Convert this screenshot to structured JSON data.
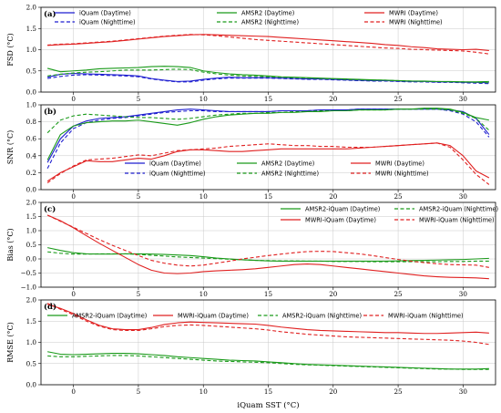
{
  "chart_data": [
    {
      "type": "line",
      "panel": "(a)",
      "ylabel": "FSD (°C)",
      "ylim": [
        0,
        2.0
      ],
      "yticks": [
        "0.0",
        "0.5",
        "1.0",
        "1.5",
        "2.0"
      ],
      "grid": true,
      "legend": "top (3 columns, 2 rows)",
      "x": [
        -2,
        -1,
        0,
        1,
        2,
        3,
        4,
        5,
        6,
        7,
        8,
        9,
        10,
        11,
        12,
        13,
        14,
        15,
        16,
        17,
        18,
        19,
        20,
        21,
        22,
        23,
        24,
        25,
        26,
        27,
        28,
        29,
        30,
        31,
        32
      ],
      "series": [
        {
          "name": "iQuam (Daytime)",
          "color": "#1f1fd0",
          "dash": "solid",
          "values": [
            0.35,
            0.42,
            0.44,
            0.43,
            0.42,
            0.41,
            0.4,
            0.38,
            0.32,
            0.28,
            0.25,
            0.26,
            0.3,
            0.33,
            0.35,
            0.34,
            0.34,
            0.34,
            0.33,
            0.32,
            0.31,
            0.31,
            0.3,
            0.29,
            0.28,
            0.27,
            0.27,
            0.26,
            0.25,
            0.25,
            0.24,
            0.24,
            0.23,
            0.23,
            0.22
          ]
        },
        {
          "name": "iQuam (Nighttime)",
          "color": "#1f1fd0",
          "dash": "dashed",
          "values": [
            0.32,
            0.37,
            0.4,
            0.41,
            0.4,
            0.39,
            0.38,
            0.36,
            0.31,
            0.27,
            0.24,
            0.24,
            0.28,
            0.31,
            0.33,
            0.33,
            0.33,
            0.33,
            0.32,
            0.31,
            0.3,
            0.3,
            0.29,
            0.28,
            0.27,
            0.26,
            0.26,
            0.25,
            0.24,
            0.24,
            0.23,
            0.23,
            0.22,
            0.21,
            0.2
          ]
        },
        {
          "name": "AMSR2 (Daytime)",
          "color": "#1a9a1a",
          "dash": "solid",
          "values": [
            0.56,
            0.48,
            0.5,
            0.52,
            0.55,
            0.56,
            0.57,
            0.58,
            0.6,
            0.61,
            0.6,
            0.58,
            0.5,
            0.46,
            0.43,
            0.41,
            0.4,
            0.38,
            0.36,
            0.35,
            0.34,
            0.33,
            0.32,
            0.31,
            0.3,
            0.29,
            0.28,
            0.27,
            0.26,
            0.26,
            0.25,
            0.25,
            0.24,
            0.24,
            0.25
          ]
        },
        {
          "name": "AMSR2 (Nighttime)",
          "color": "#1a9a1a",
          "dash": "dashed",
          "values": [
            0.38,
            0.42,
            0.45,
            0.47,
            0.48,
            0.5,
            0.52,
            0.52,
            0.52,
            0.53,
            0.54,
            0.53,
            0.47,
            0.43,
            0.4,
            0.38,
            0.37,
            0.36,
            0.35,
            0.34,
            0.33,
            0.32,
            0.31,
            0.3,
            0.29,
            0.28,
            0.28,
            0.27,
            0.26,
            0.25,
            0.25,
            0.24,
            0.24,
            0.23,
            0.22
          ]
        },
        {
          "name": "MWRI (Daytime)",
          "color": "#e02020",
          "dash": "solid",
          "values": [
            1.1,
            1.12,
            1.13,
            1.15,
            1.17,
            1.19,
            1.22,
            1.25,
            1.28,
            1.31,
            1.33,
            1.35,
            1.36,
            1.35,
            1.34,
            1.33,
            1.32,
            1.31,
            1.29,
            1.27,
            1.25,
            1.23,
            1.21,
            1.19,
            1.17,
            1.15,
            1.12,
            1.1,
            1.07,
            1.05,
            1.02,
            1.01,
            1.0,
            1.01,
            0.98
          ]
        },
        {
          "name": "MWRI (Nighttime)",
          "color": "#e02020",
          "dash": "dashed",
          "values": [
            1.11,
            1.13,
            1.14,
            1.16,
            1.18,
            1.2,
            1.23,
            1.26,
            1.29,
            1.32,
            1.34,
            1.36,
            1.35,
            1.33,
            1.3,
            1.27,
            1.24,
            1.22,
            1.2,
            1.18,
            1.16,
            1.14,
            1.12,
            1.1,
            1.08,
            1.06,
            1.04,
            1.03,
            1.01,
            1.0,
            0.99,
            0.98,
            0.97,
            0.94,
            0.9
          ]
        }
      ]
    },
    {
      "type": "line",
      "panel": "(b)",
      "ylabel": "SNR (°C)",
      "ylim": [
        0,
        1.0
      ],
      "yticks": [
        "0.0",
        "0.2",
        "0.4",
        "0.6",
        "0.8",
        "1.0"
      ],
      "grid": true,
      "legend": "bottom (3 columns, 2 rows)",
      "x": [
        -2,
        -1,
        0,
        1,
        2,
        3,
        4,
        5,
        6,
        7,
        8,
        9,
        10,
        11,
        12,
        13,
        14,
        15,
        16,
        17,
        18,
        19,
        20,
        21,
        22,
        23,
        24,
        25,
        26,
        27,
        28,
        29,
        30,
        31,
        32
      ],
      "series": [
        {
          "name": "iQuam (Daytime)",
          "color": "#1f1fd0",
          "dash": "solid",
          "values": [
            0.32,
            0.6,
            0.75,
            0.81,
            0.84,
            0.85,
            0.86,
            0.88,
            0.9,
            0.92,
            0.94,
            0.95,
            0.94,
            0.93,
            0.92,
            0.92,
            0.92,
            0.92,
            0.93,
            0.93,
            0.93,
            0.94,
            0.94,
            0.94,
            0.95,
            0.95,
            0.95,
            0.95,
            0.95,
            0.95,
            0.95,
            0.94,
            0.92,
            0.84,
            0.65
          ]
        },
        {
          "name": "iQuam (Nighttime)",
          "color": "#1f1fd0",
          "dash": "dashed",
          "values": [
            0.25,
            0.55,
            0.72,
            0.79,
            0.82,
            0.84,
            0.85,
            0.87,
            0.89,
            0.91,
            0.92,
            0.93,
            0.93,
            0.92,
            0.92,
            0.92,
            0.92,
            0.92,
            0.93,
            0.93,
            0.93,
            0.94,
            0.94,
            0.94,
            0.95,
            0.95,
            0.95,
            0.95,
            0.95,
            0.95,
            0.95,
            0.93,
            0.89,
            0.8,
            0.62
          ]
        },
        {
          "name": "AMSR2 (Daytime)",
          "color": "#1a9a1a",
          "dash": "solid",
          "values": [
            0.35,
            0.65,
            0.75,
            0.79,
            0.8,
            0.81,
            0.81,
            0.82,
            0.8,
            0.78,
            0.76,
            0.79,
            0.83,
            0.86,
            0.88,
            0.89,
            0.9,
            0.9,
            0.91,
            0.91,
            0.92,
            0.92,
            0.93,
            0.93,
            0.94,
            0.94,
            0.94,
            0.95,
            0.95,
            0.96,
            0.96,
            0.95,
            0.91,
            0.85,
            0.82
          ]
        },
        {
          "name": "AMSR2 (Nighttime)",
          "color": "#1a9a1a",
          "dash": "dashed",
          "values": [
            0.67,
            0.82,
            0.87,
            0.89,
            0.88,
            0.87,
            0.86,
            0.85,
            0.85,
            0.84,
            0.83,
            0.84,
            0.86,
            0.88,
            0.89,
            0.9,
            0.9,
            0.91,
            0.91,
            0.92,
            0.92,
            0.93,
            0.93,
            0.93,
            0.94,
            0.94,
            0.94,
            0.95,
            0.95,
            0.95,
            0.95,
            0.94,
            0.9,
            0.84,
            0.7
          ]
        },
        {
          "name": "MWRI (Daytime)",
          "color": "#e02020",
          "dash": "solid",
          "values": [
            0.1,
            0.2,
            0.27,
            0.34,
            0.33,
            0.33,
            0.35,
            0.37,
            0.36,
            0.4,
            0.45,
            0.47,
            0.47,
            0.46,
            0.45,
            0.45,
            0.46,
            0.47,
            0.48,
            0.48,
            0.48,
            0.48,
            0.48,
            0.48,
            0.49,
            0.5,
            0.51,
            0.52,
            0.53,
            0.54,
            0.55,
            0.52,
            0.4,
            0.22,
            0.14
          ]
        },
        {
          "name": "MWRI (Nighttime)",
          "color": "#e02020",
          "dash": "dashed",
          "values": [
            0.08,
            0.19,
            0.28,
            0.35,
            0.36,
            0.37,
            0.39,
            0.41,
            0.4,
            0.43,
            0.46,
            0.47,
            0.48,
            0.49,
            0.51,
            0.52,
            0.53,
            0.54,
            0.53,
            0.52,
            0.52,
            0.51,
            0.51,
            0.5,
            0.5,
            0.5,
            0.51,
            0.52,
            0.53,
            0.54,
            0.55,
            0.5,
            0.35,
            0.18,
            0.06
          ]
        }
      ]
    },
    {
      "type": "line",
      "panel": "(c)",
      "ylabel": "Bias (°C)",
      "ylim": [
        -1.0,
        2.0
      ],
      "yticks": [
        "−1.0",
        "−0.5",
        "0.0",
        "0.5",
        "1.0",
        "1.5",
        "2.0"
      ],
      "grid": true,
      "legend": "top-right (2 columns, 2 rows)",
      "x": [
        -2,
        -1,
        0,
        1,
        2,
        3,
        4,
        5,
        6,
        7,
        8,
        9,
        10,
        11,
        12,
        13,
        14,
        15,
        16,
        17,
        18,
        19,
        20,
        21,
        22,
        23,
        24,
        25,
        26,
        27,
        28,
        29,
        30,
        31,
        32
      ],
      "series": [
        {
          "name": "AMSR2-iQuam (Daytime)",
          "color": "#1a9a1a",
          "dash": "solid",
          "values": [
            0.4,
            0.3,
            0.22,
            0.18,
            0.17,
            0.17,
            0.18,
            0.18,
            0.17,
            0.16,
            0.14,
            0.12,
            0.08,
            0.03,
            0.0,
            -0.03,
            -0.05,
            -0.07,
            -0.08,
            -0.08,
            -0.08,
            -0.08,
            -0.08,
            -0.08,
            -0.08,
            -0.08,
            -0.08,
            -0.07,
            -0.06,
            -0.05,
            -0.04,
            -0.03,
            -0.02,
            0.0,
            0.02
          ]
        },
        {
          "name": "AMSR2-iQuam (Nighttime)",
          "color": "#1a9a1a",
          "dash": "dashed",
          "values": [
            0.25,
            0.2,
            0.17,
            0.17,
            0.18,
            0.18,
            0.18,
            0.16,
            0.13,
            0.1,
            0.07,
            0.05,
            0.03,
            0.01,
            -0.01,
            -0.03,
            -0.05,
            -0.06,
            -0.07,
            -0.07,
            -0.08,
            -0.08,
            -0.09,
            -0.09,
            -0.09,
            -0.1,
            -0.1,
            -0.1,
            -0.1,
            -0.1,
            -0.1,
            -0.09,
            -0.09,
            -0.08,
            -0.08
          ]
        },
        {
          "name": "MWRI-iQuam (Daytime)",
          "color": "#e02020",
          "dash": "solid",
          "values": [
            1.55,
            1.35,
            1.1,
            0.82,
            0.55,
            0.3,
            0.05,
            -0.2,
            -0.4,
            -0.5,
            -0.52,
            -0.5,
            -0.45,
            -0.42,
            -0.4,
            -0.38,
            -0.35,
            -0.3,
            -0.25,
            -0.2,
            -0.18,
            -0.2,
            -0.25,
            -0.3,
            -0.35,
            -0.4,
            -0.45,
            -0.5,
            -0.55,
            -0.6,
            -0.63,
            -0.65,
            -0.66,
            -0.67,
            -0.7
          ]
        },
        {
          "name": "MWRI-iQuam (Nighttime)",
          "color": "#e02020",
          "dash": "dashed",
          "values": [
            1.55,
            1.33,
            1.12,
            0.9,
            0.68,
            0.48,
            0.3,
            0.12,
            -0.05,
            -0.15,
            -0.22,
            -0.25,
            -0.22,
            -0.15,
            -0.08,
            0.0,
            0.06,
            0.12,
            0.17,
            0.22,
            0.26,
            0.27,
            0.26,
            0.22,
            0.18,
            0.12,
            0.05,
            -0.02,
            -0.08,
            -0.13,
            -0.17,
            -0.2,
            -0.21,
            -0.22,
            -0.3
          ]
        }
      ]
    },
    {
      "type": "line",
      "panel": "(d)",
      "ylabel": "RMSE (°C)",
      "xlabel": "iQuam SST (°C)",
      "ylim": [
        0,
        2.0
      ],
      "yticks": [
        "0.0",
        "0.5",
        "1.0",
        "1.5",
        "2.0"
      ],
      "xticks": [
        "0",
        "5",
        "10",
        "15",
        "20",
        "25",
        "30"
      ],
      "xlim": [
        -2.5,
        32.5
      ],
      "grid": true,
      "legend": "top (4 columns, 1 row)",
      "x": [
        -2,
        -1,
        0,
        1,
        2,
        3,
        4,
        5,
        6,
        7,
        8,
        9,
        10,
        11,
        12,
        13,
        14,
        15,
        16,
        17,
        18,
        19,
        20,
        21,
        22,
        23,
        24,
        25,
        26,
        27,
        28,
        29,
        30,
        31,
        32
      ],
      "series": [
        {
          "name": "AMSR2-iQuam (Daytime)",
          "color": "#1a9a1a",
          "dash": "solid",
          "values": [
            0.78,
            0.72,
            0.71,
            0.72,
            0.73,
            0.74,
            0.74,
            0.73,
            0.71,
            0.69,
            0.66,
            0.64,
            0.62,
            0.6,
            0.58,
            0.57,
            0.56,
            0.54,
            0.52,
            0.5,
            0.48,
            0.47,
            0.46,
            0.45,
            0.44,
            0.43,
            0.42,
            0.41,
            0.4,
            0.39,
            0.38,
            0.37,
            0.37,
            0.37,
            0.38
          ]
        },
        {
          "name": "MWRI-iQuam (Daytime)",
          "color": "#e02020",
          "dash": "solid",
          "values": [
            1.9,
            1.8,
            1.68,
            1.53,
            1.4,
            1.32,
            1.3,
            1.3,
            1.35,
            1.42,
            1.46,
            1.48,
            1.47,
            1.46,
            1.45,
            1.44,
            1.43,
            1.4,
            1.36,
            1.33,
            1.3,
            1.28,
            1.27,
            1.26,
            1.25,
            1.24,
            1.23,
            1.23,
            1.22,
            1.21,
            1.21,
            1.22,
            1.23,
            1.24,
            1.22
          ]
        },
        {
          "name": "AMSR2-iQuam (Nighttime)",
          "color": "#1a9a1a",
          "dash": "dashed",
          "values": [
            0.68,
            0.66,
            0.66,
            0.67,
            0.68,
            0.69,
            0.69,
            0.68,
            0.66,
            0.64,
            0.62,
            0.6,
            0.58,
            0.56,
            0.55,
            0.54,
            0.53,
            0.52,
            0.5,
            0.48,
            0.47,
            0.46,
            0.45,
            0.44,
            0.43,
            0.42,
            0.41,
            0.4,
            0.39,
            0.38,
            0.37,
            0.37,
            0.36,
            0.36,
            0.36
          ]
        },
        {
          "name": "MWRI-iQuam (Nighttime)",
          "color": "#e02020",
          "dash": "dashed",
          "values": [
            1.92,
            1.78,
            1.65,
            1.5,
            1.38,
            1.3,
            1.28,
            1.28,
            1.32,
            1.37,
            1.4,
            1.41,
            1.4,
            1.38,
            1.36,
            1.34,
            1.32,
            1.29,
            1.25,
            1.22,
            1.19,
            1.17,
            1.15,
            1.13,
            1.12,
            1.11,
            1.1,
            1.09,
            1.08,
            1.07,
            1.06,
            1.05,
            1.03,
            1.0,
            0.95
          ]
        }
      ]
    }
  ]
}
